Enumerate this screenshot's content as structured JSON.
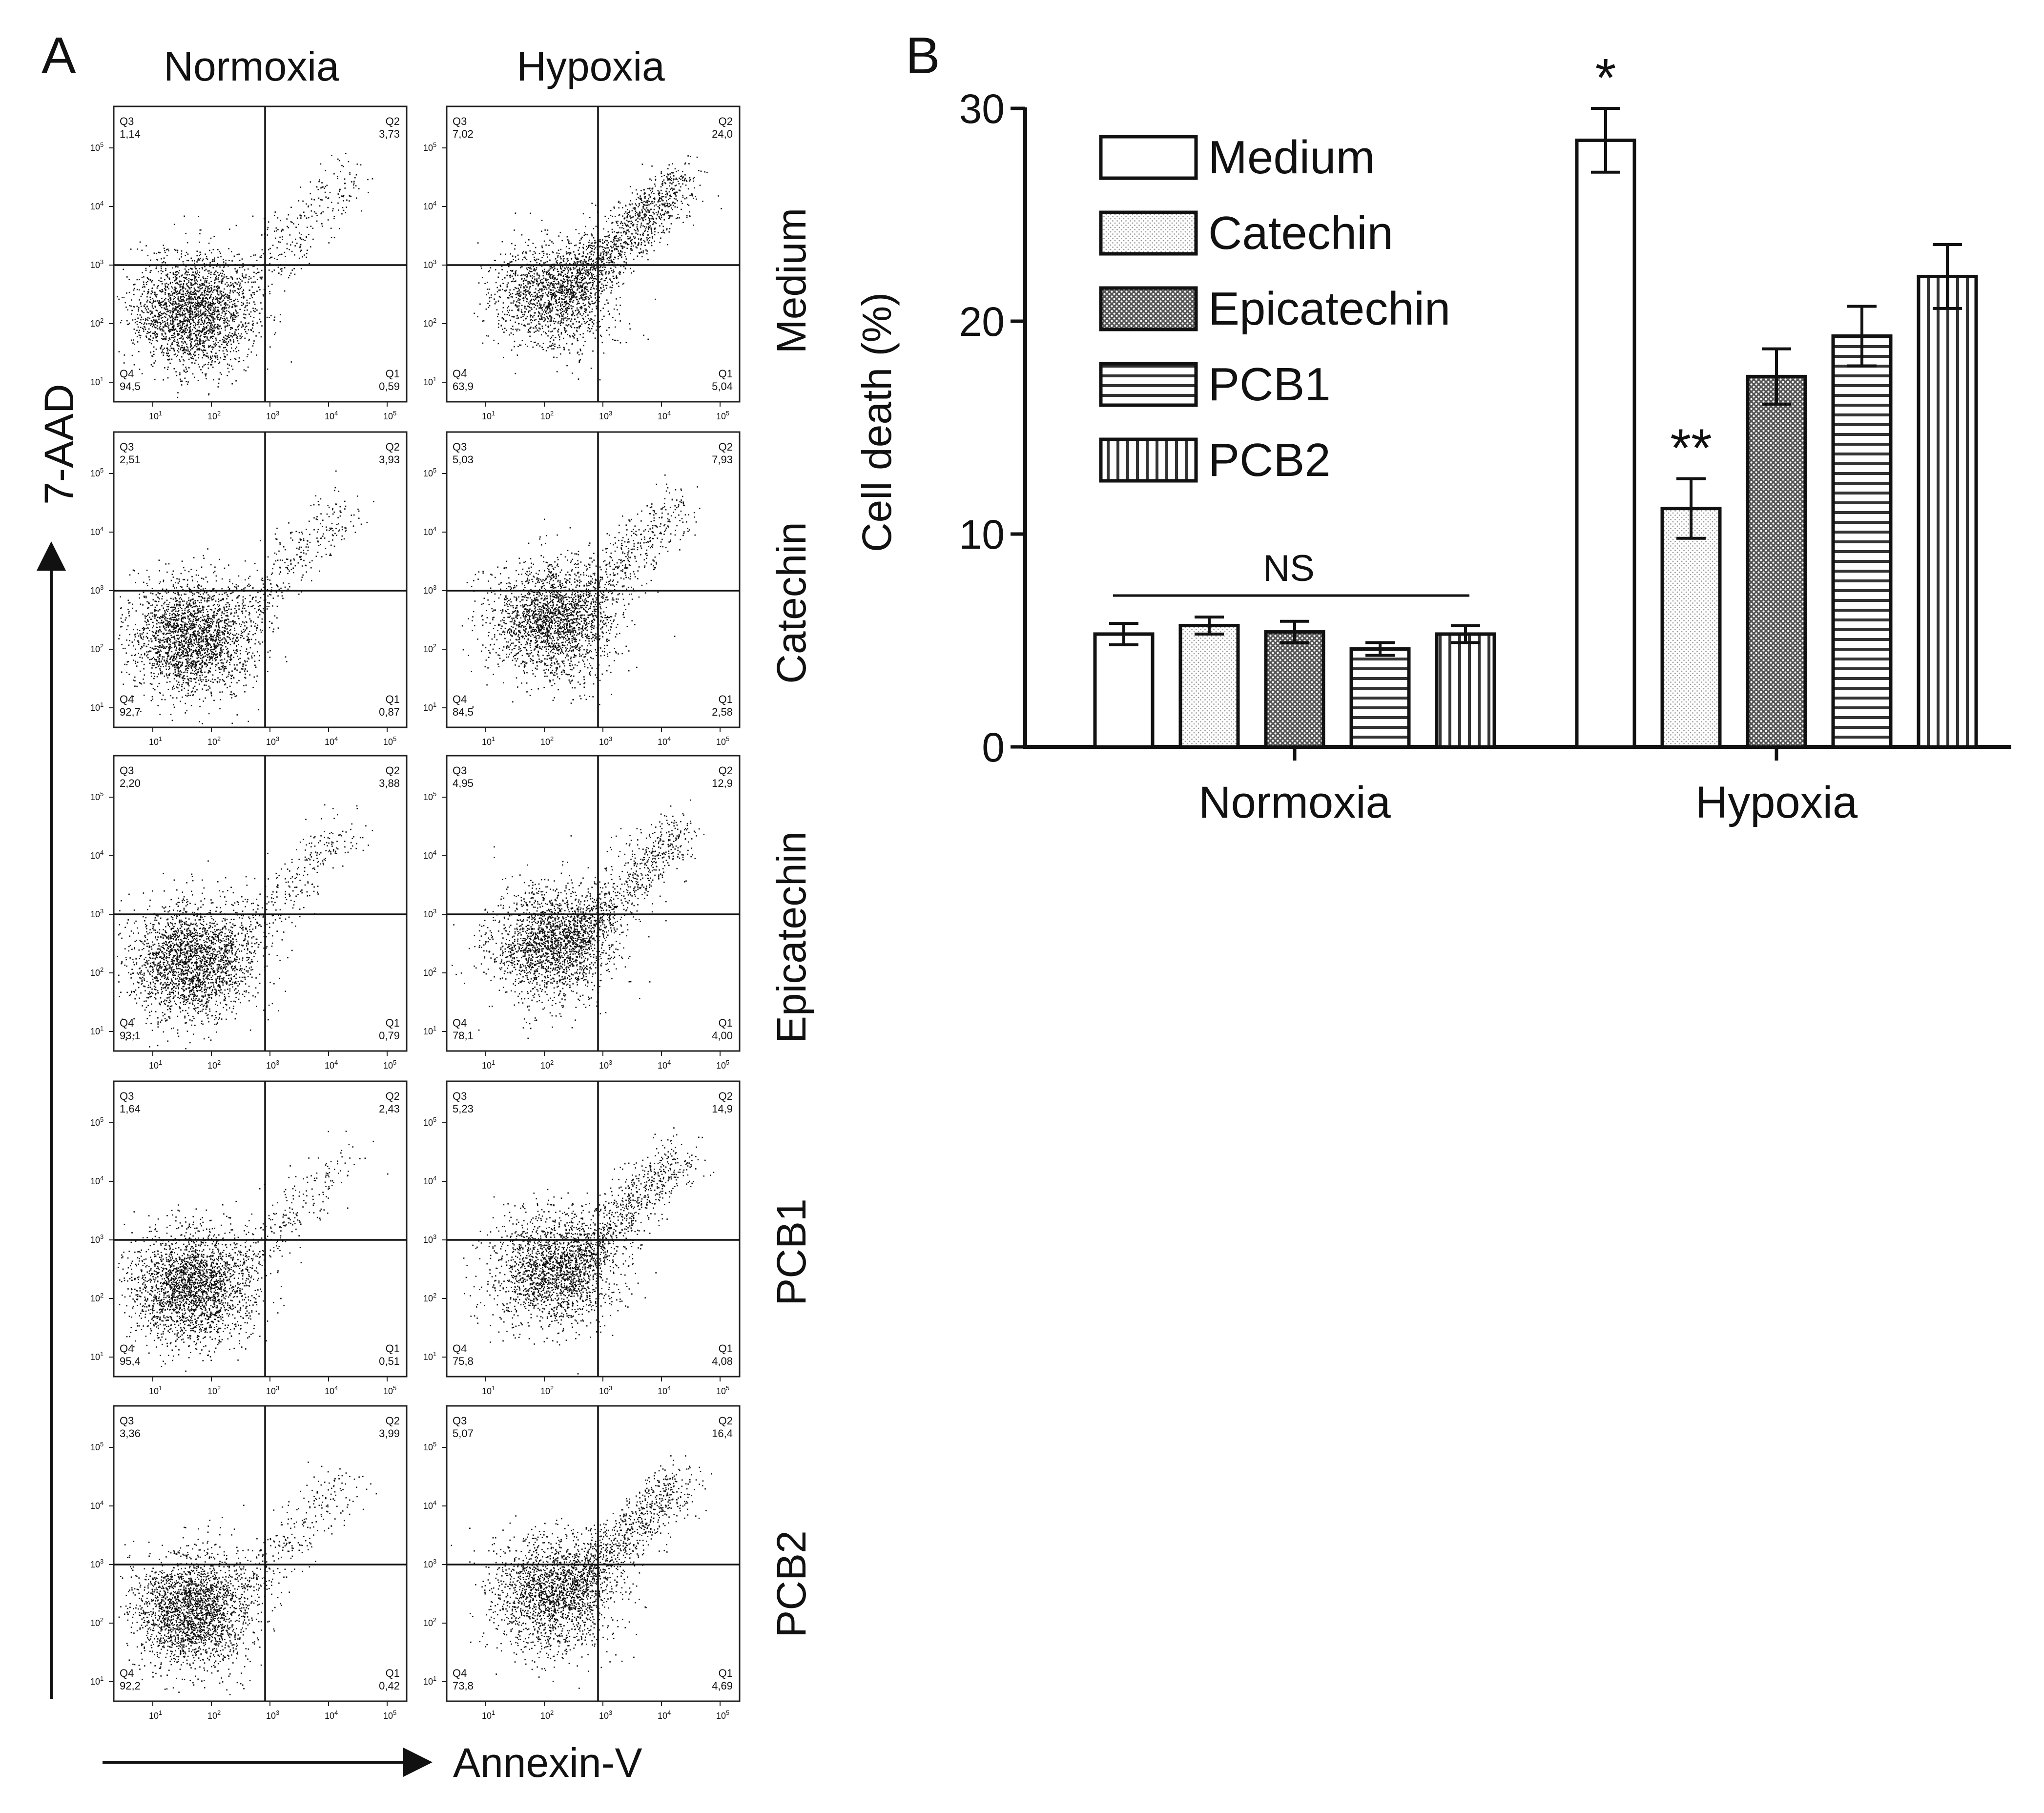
{
  "panel_labels": {
    "a": "A",
    "b": "B"
  },
  "columns": [
    "Normoxia",
    "Hypoxia"
  ],
  "rows": [
    "Medium",
    "Catechin",
    "Epicatechin",
    "PCB1",
    "PCB2"
  ],
  "flow_axes": {
    "y": "7-AAD",
    "x": "Annexin-V"
  },
  "quadrant_ids": {
    "tl": "Q3",
    "tr": "Q2",
    "bl": "Q4",
    "br": "Q1"
  },
  "flow_ticks": {
    "base": "10",
    "exponents": [
      "1",
      "2",
      "3",
      "4",
      "5"
    ]
  },
  "flow_colors": {
    "dots": "#111111",
    "border": "#222222",
    "gate": "#111111"
  },
  "flow_data": {
    "normoxia": [
      {
        "q3": "1,14",
        "q2": "3,73",
        "q4": "94,5",
        "q1": "0,59"
      },
      {
        "q3": "2,51",
        "q2": "3,93",
        "q4": "92,7",
        "q1": "0,87"
      },
      {
        "q3": "2,20",
        "q2": "3,88",
        "q4": "93,1",
        "q1": "0,79"
      },
      {
        "q3": "1,64",
        "q2": "2,43",
        "q4": "95,4",
        "q1": "0,51"
      },
      {
        "q3": "3,36",
        "q2": "3,99",
        "q4": "92,2",
        "q1": "0,42"
      }
    ],
    "hypoxia": [
      {
        "q3": "7,02",
        "q2": "24,0",
        "q4": "63,9",
        "q1": "5,04"
      },
      {
        "q3": "5,03",
        "q2": "7,93",
        "q4": "84,5",
        "q1": "2,58"
      },
      {
        "q3": "4,95",
        "q2": "12,9",
        "q4": "78,1",
        "q1": "4,00"
      },
      {
        "q3": "5,23",
        "q2": "14,9",
        "q4": "75,8",
        "q1": "4,08"
      },
      {
        "q3": "5,07",
        "q2": "16,4",
        "q4": "73,8",
        "q1": "4,69"
      }
    ]
  },
  "chart_data": {
    "type": "bar",
    "ylabel": "Cell death (%)",
    "xlabel": "",
    "ylim": [
      0,
      30
    ],
    "yticks": [
      "0",
      "10",
      "20",
      "30"
    ],
    "categories": [
      "Normoxia",
      "Hypoxia"
    ],
    "series": [
      {
        "name": "Medium",
        "pattern": "blank",
        "values": [
          5.3,
          28.5
        ],
        "errors": [
          0.5,
          1.5
        ]
      },
      {
        "name": "Catechin",
        "pattern": "dots",
        "values": [
          5.7,
          11.2
        ],
        "errors": [
          0.4,
          1.4
        ]
      },
      {
        "name": "Epicatechin",
        "pattern": "crosshatch",
        "values": [
          5.4,
          17.4
        ],
        "errors": [
          0.5,
          1.3
        ]
      },
      {
        "name": "PCB1",
        "pattern": "horizontal",
        "values": [
          4.6,
          19.3
        ],
        "errors": [
          0.3,
          1.4
        ]
      },
      {
        "name": "PCB2",
        "pattern": "vertical",
        "values": [
          5.3,
          22.1
        ],
        "errors": [
          0.4,
          1.5
        ]
      }
    ],
    "annotations": {
      "ns": "NS",
      "medium_hypoxia": "*",
      "catechin_hypoxia": "**"
    },
    "legend_position": "top-left"
  }
}
